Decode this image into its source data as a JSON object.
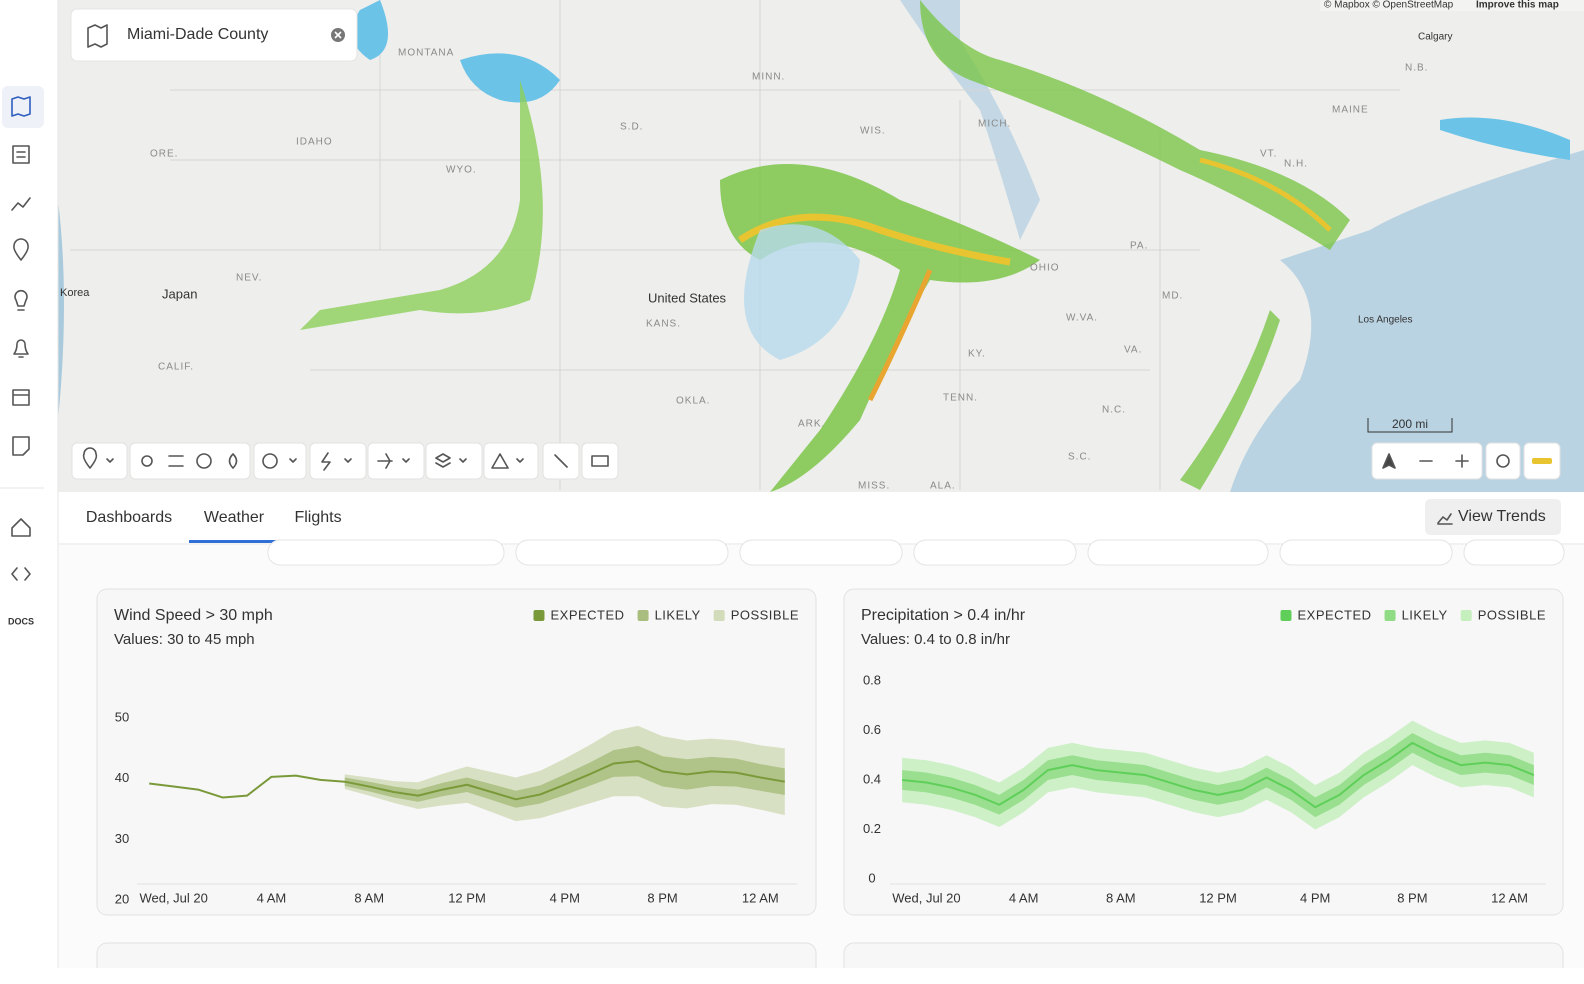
{
  "search": {
    "text": "Miami-Dade County"
  },
  "map": {
    "attribution": "© Mapbox © OpenStreetMap",
    "attribution_link": "Improve this map",
    "scale": "200 mi",
    "labels": [
      "IDAHO",
      "ORE.",
      "WYO.",
      "NEV.",
      "CALIF.",
      "Japan",
      "Korea",
      "S.D.",
      "MINN.",
      "WIS.",
      "MICH.",
      "PA.",
      "OHIO",
      "W.VA.",
      "VA.",
      "KY.",
      "TENN.",
      "N.C.",
      "S.C.",
      "ARK.",
      "OKLA.",
      "MISS.",
      "ALA.",
      "MD.",
      "VT.",
      "N.H.",
      "MAINE",
      "N.B.",
      "Calgary",
      "Los Angeles",
      "United States",
      "MONTANA",
      "KANS."
    ]
  },
  "sidebar": {
    "docs": "DOCS"
  },
  "tabs": [
    "Dashboards",
    "Weather",
    "Flights"
  ],
  "button": "View Trends",
  "charts": [
    {
      "type": "line-band",
      "title": "Wind Speed > 30 mph",
      "subtitle": "Values: 30 to 45 mph",
      "x": [
        -1,
        0,
        1,
        2,
        3,
        4,
        5,
        6,
        7,
        8,
        9,
        10,
        11,
        12,
        13,
        14,
        15,
        16,
        17,
        18,
        19,
        20,
        21,
        22,
        23,
        24,
        25
      ],
      "xlim": [
        -1.5,
        25.5
      ],
      "xticks": [
        {
          "value": 0,
          "label": "Wed, Jul 20"
        },
        {
          "value": 4,
          "label": "4 AM"
        },
        {
          "value": 8,
          "label": "8 AM"
        },
        {
          "value": 12,
          "label": "12 PM"
        },
        {
          "value": 16,
          "label": "4 PM"
        },
        {
          "value": 20,
          "label": "8 PM"
        },
        {
          "value": 24,
          "label": "12 AM"
        }
      ],
      "ylim": [
        20,
        50
      ],
      "yticks": [
        50,
        40,
        30,
        20
      ],
      "series": [
        {
          "name": "EXPECTED",
          "color": "#7a9a3a",
          "values": [
            39.2,
            38.7,
            38.2,
            36.9,
            37.2,
            40.3,
            40.5,
            39.8,
            39.5,
            38.7,
            37.8,
            37.2,
            38.2,
            39.0,
            37.8,
            36.6,
            37.4,
            39.0,
            40.7,
            42.5,
            42.9,
            41.2,
            40.7,
            41.2,
            41.0,
            40.2,
            39.5
          ]
        },
        {
          "name": "LIKELY",
          "color": "#a9bd7e",
          "high": [
            null,
            null,
            null,
            null,
            null,
            null,
            null,
            null,
            40.2,
            39.5,
            38.7,
            38.2,
            39.3,
            40.2,
            39.1,
            38.0,
            38.9,
            40.7,
            42.6,
            44.7,
            45.4,
            43.7,
            43.2,
            43.6,
            43.3,
            42.4,
            41.7
          ],
          "low": [
            null,
            null,
            null,
            null,
            null,
            null,
            null,
            null,
            38.8,
            37.9,
            36.9,
            36.2,
            37.1,
            37.8,
            36.5,
            35.2,
            35.9,
            37.3,
            38.8,
            40.3,
            40.4,
            38.7,
            38.2,
            38.8,
            38.7,
            38.0,
            37.3
          ]
        },
        {
          "name": "POSSIBLE",
          "color": "#d2dcba",
          "high": [
            null,
            null,
            null,
            null,
            null,
            null,
            null,
            null,
            40.7,
            40.2,
            39.6,
            39.4,
            40.8,
            42.0,
            41.1,
            40.2,
            41.3,
            43.3,
            45.5,
            47.9,
            48.7,
            47.0,
            46.3,
            46.6,
            46.3,
            45.5,
            45.0
          ],
          "low": [
            null,
            null,
            null,
            null,
            null,
            null,
            null,
            null,
            38.3,
            37.2,
            36.0,
            35.0,
            35.6,
            36.0,
            34.5,
            33.0,
            33.5,
            34.7,
            35.9,
            37.1,
            37.1,
            35.4,
            35.1,
            35.8,
            35.7,
            34.9,
            34.0
          ]
        }
      ]
    },
    {
      "type": "line-band",
      "title": "Precipitation  > 0.4 in/hr",
      "subtitle": "Values: 0.4 to 0.8 in/hr",
      "x": [
        -1,
        0,
        1,
        2,
        3,
        4,
        5,
        6,
        7,
        8,
        9,
        10,
        11,
        12,
        13,
        14,
        15,
        16,
        17,
        18,
        19,
        20,
        21,
        22,
        23,
        24,
        25
      ],
      "xlim": [
        -1.5,
        25.5
      ],
      "xticks": [
        {
          "value": 0,
          "label": "Wed, Jul 20"
        },
        {
          "value": 4,
          "label": "4 AM"
        },
        {
          "value": 8,
          "label": "8 AM"
        },
        {
          "value": 12,
          "label": "12 PM"
        },
        {
          "value": 16,
          "label": "4 PM"
        },
        {
          "value": 20,
          "label": "8 PM"
        },
        {
          "value": 24,
          "label": "12 AM"
        }
      ],
      "ylim": [
        0,
        0.8
      ],
      "yticks": [
        0.8,
        0.6,
        0.4,
        0.2,
        0
      ],
      "series": [
        {
          "name": "EXPECTED",
          "color": "#5fcf5a",
          "values": [
            0.4,
            0.39,
            0.37,
            0.34,
            0.3,
            0.36,
            0.44,
            0.46,
            0.44,
            0.43,
            0.42,
            0.39,
            0.36,
            0.34,
            0.36,
            0.41,
            0.36,
            0.29,
            0.34,
            0.42,
            0.48,
            0.55,
            0.5,
            0.46,
            0.47,
            0.46,
            0.42
          ]
        },
        {
          "name": "LIKELY",
          "color": "#8fdc85",
          "high": [
            0.44,
            0.43,
            0.41,
            0.38,
            0.34,
            0.4,
            0.48,
            0.5,
            0.48,
            0.47,
            0.46,
            0.43,
            0.4,
            0.38,
            0.4,
            0.45,
            0.4,
            0.33,
            0.38,
            0.46,
            0.52,
            0.59,
            0.54,
            0.5,
            0.51,
            0.5,
            0.46
          ],
          "low": [
            0.36,
            0.35,
            0.33,
            0.3,
            0.26,
            0.32,
            0.4,
            0.42,
            0.4,
            0.39,
            0.38,
            0.35,
            0.32,
            0.3,
            0.32,
            0.37,
            0.32,
            0.25,
            0.3,
            0.38,
            0.44,
            0.51,
            0.46,
            0.42,
            0.43,
            0.42,
            0.38
          ]
        },
        {
          "name": "POSSIBLE",
          "color": "#c6efbe",
          "high": [
            0.49,
            0.48,
            0.46,
            0.43,
            0.39,
            0.45,
            0.53,
            0.55,
            0.53,
            0.52,
            0.51,
            0.48,
            0.45,
            0.43,
            0.45,
            0.5,
            0.45,
            0.38,
            0.43,
            0.51,
            0.57,
            0.64,
            0.59,
            0.55,
            0.56,
            0.55,
            0.51
          ],
          "low": [
            0.31,
            0.3,
            0.28,
            0.25,
            0.21,
            0.27,
            0.35,
            0.37,
            0.35,
            0.34,
            0.33,
            0.3,
            0.27,
            0.25,
            0.27,
            0.32,
            0.27,
            0.2,
            0.25,
            0.33,
            0.39,
            0.46,
            0.41,
            0.37,
            0.38,
            0.37,
            0.33
          ]
        }
      ]
    }
  ]
}
